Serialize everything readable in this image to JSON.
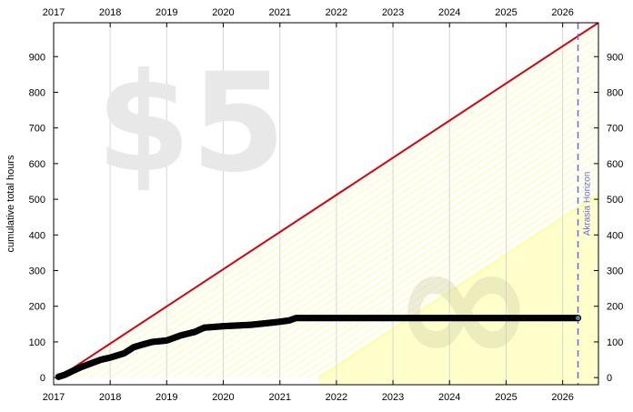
{
  "chart_data": {
    "type": "line",
    "ylabel": "cumulative total hours",
    "x_ticks": [
      "2017",
      "2018",
      "2019",
      "2020",
      "2021",
      "2022",
      "2023",
      "2024",
      "2025",
      "2026"
    ],
    "y_ticks": [
      "0",
      "100",
      "200",
      "300",
      "400",
      "500",
      "600",
      "700",
      "800",
      "900"
    ],
    "xlim": [
      "2017-01-01",
      "2026-08-20"
    ],
    "ylim": [
      -20,
      995
    ],
    "grid": "vertical-only",
    "watermark": "$5",
    "watermark_symbol": "∞",
    "horizon": {
      "label": "Akrasia Horizon",
      "date": "2026-04-10",
      "color": "#6666ee"
    },
    "colors": {
      "road": "#dd0000",
      "data_dots": "#000000",
      "data_fill": "#1d4736",
      "safe_fill": "#ffffcc",
      "safe_hatch": "#ffff88"
    },
    "road": [
      {
        "x": "2017-02-01",
        "y": 0
      },
      {
        "x": "2026-08-20",
        "y": 995
      }
    ],
    "series": [
      {
        "points": [
          {
            "x": "2017-02-01",
            "y": 2
          },
          {
            "x": "2017-03-15",
            "y": 8
          },
          {
            "x": "2017-05-01",
            "y": 18
          },
          {
            "x": "2017-07-01",
            "y": 30
          },
          {
            "x": "2017-09-01",
            "y": 40
          },
          {
            "x": "2017-11-01",
            "y": 50
          },
          {
            "x": "2018-01-01",
            "y": 56
          },
          {
            "x": "2018-04-01",
            "y": 68
          },
          {
            "x": "2018-06-01",
            "y": 85
          },
          {
            "x": "2018-08-01",
            "y": 93
          },
          {
            "x": "2018-10-01",
            "y": 100
          },
          {
            "x": "2019-01-01",
            "y": 104
          },
          {
            "x": "2019-04-01",
            "y": 118
          },
          {
            "x": "2019-07-01",
            "y": 128
          },
          {
            "x": "2019-09-01",
            "y": 140
          },
          {
            "x": "2020-01-01",
            "y": 144
          },
          {
            "x": "2020-07-01",
            "y": 148
          },
          {
            "x": "2020-12-01",
            "y": 155
          },
          {
            "x": "2021-03-01",
            "y": 160
          },
          {
            "x": "2021-04-15",
            "y": 167
          },
          {
            "x": "2022-01-01",
            "y": 167
          },
          {
            "x": "2023-06-01",
            "y": 167
          },
          {
            "x": "2025-01-01",
            "y": 167
          },
          {
            "x": "2026-04-10",
            "y": 167
          }
        ]
      }
    ]
  }
}
